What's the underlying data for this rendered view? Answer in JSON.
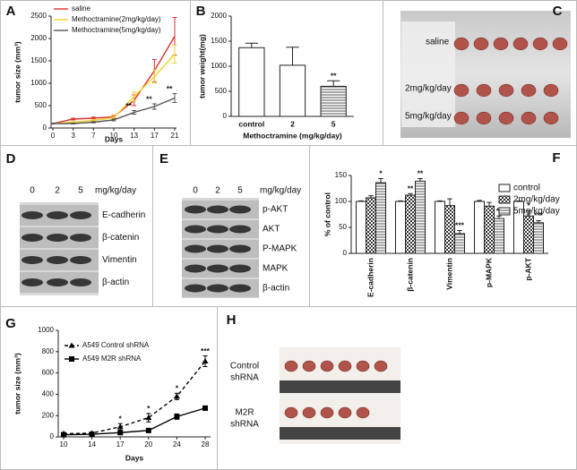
{
  "chart_data": [
    {
      "panel": "A",
      "type": "line",
      "ylabel": "tumor size (mm³)",
      "xlabel": "Days",
      "categories": [
        "0",
        "3",
        "7",
        "10",
        "13",
        "17",
        "21"
      ],
      "ylim": [
        0,
        2500
      ],
      "yticks": [
        0,
        500,
        1000,
        1500,
        2000,
        2500
      ],
      "legend": "top-left",
      "series": [
        {
          "name": "saline",
          "color": "#e0302e",
          "values": [
            100,
            200,
            220,
            250,
            620,
            1280,
            2050
          ],
          "errors": [
            10,
            20,
            25,
            30,
            120,
            250,
            420
          ]
        },
        {
          "name": "Methoctramine(2mg/kg/day)",
          "color": "#f2d22a",
          "values": [
            100,
            130,
            170,
            230,
            700,
            1150,
            1650
          ],
          "errors": [
            10,
            15,
            20,
            30,
            100,
            150,
            200
          ]
        },
        {
          "name": "Methoctramine(5mg/kg/day)",
          "color": "#555555",
          "values": [
            100,
            100,
            130,
            180,
            350,
            480,
            670
          ],
          "errors": [
            10,
            10,
            15,
            20,
            40,
            60,
            100
          ],
          "significance": [
            null,
            null,
            null,
            null,
            "**",
            "**",
            "**"
          ]
        }
      ]
    },
    {
      "panel": "B",
      "type": "bar",
      "ylabel": "tumor weight(mg)",
      "xlabel": "Methoctramine (mg/kg/day)",
      "categories": [
        "control",
        "2",
        "5"
      ],
      "ylim": [
        0,
        2000
      ],
      "yticks": [
        0,
        500,
        1000,
        1500,
        2000
      ],
      "series": [
        {
          "color": "#222222",
          "patterns": [
            "none",
            "none",
            "hlines"
          ],
          "values": [
            1370,
            1020,
            600
          ],
          "errors": [
            90,
            360,
            110
          ],
          "significance": [
            null,
            null,
            "**"
          ]
        }
      ]
    },
    {
      "panel": "F",
      "type": "bar",
      "ylabel": "% of control",
      "categories": [
        "E-cadherin",
        "β-catenin",
        "Vimentin",
        "p-MAPK",
        "p-AKT"
      ],
      "ylim": [
        0,
        150
      ],
      "yticks": [
        0,
        50,
        100,
        150
      ],
      "legend": "top-right",
      "series": [
        {
          "name": "control",
          "color": "#222222",
          "pattern": "none",
          "values": [
            100,
            100,
            100,
            100,
            100
          ],
          "errors": [
            1,
            1,
            1,
            2,
            1
          ]
        },
        {
          "name": "2mg/kg/day",
          "color": "#222222",
          "pattern": "checker",
          "values": [
            107,
            112,
            92,
            91,
            72
          ],
          "errors": [
            4,
            3,
            13,
            7,
            10
          ],
          "significance": [
            null,
            "**",
            null,
            null,
            "*"
          ]
        },
        {
          "name": "5mg/kg/day",
          "color": "#222222",
          "pattern": "hlines",
          "values": [
            136,
            139,
            38,
            67,
            59
          ],
          "errors": [
            8,
            5,
            6,
            5,
            4
          ],
          "significance": [
            "*",
            "**",
            "***",
            "**",
            "***"
          ]
        }
      ]
    },
    {
      "panel": "G",
      "type": "line",
      "ylabel": "tumor size (mm³)",
      "xlabel": "Days",
      "categories": [
        "10",
        "14",
        "17",
        "20",
        "24",
        "28"
      ],
      "ylim": [
        0,
        1000
      ],
      "yticks": [
        0,
        200,
        400,
        600,
        800,
        1000
      ],
      "legend": "top-left",
      "series": [
        {
          "name": "A549 Control shRNA",
          "color": "#000000",
          "dash": "dashed",
          "marker": "triangle",
          "values": [
            30,
            35,
            95,
            180,
            380,
            710
          ],
          "errors": [
            10,
            10,
            30,
            40,
            30,
            50
          ],
          "significance": [
            null,
            null,
            "*",
            "*",
            "*",
            "***"
          ]
        },
        {
          "name": "A549 M2R shRNA",
          "color": "#000000",
          "dash": "solid",
          "marker": "square",
          "values": [
            20,
            25,
            40,
            60,
            190,
            270
          ],
          "errors": [
            5,
            5,
            10,
            15,
            25,
            20
          ]
        }
      ]
    }
  ],
  "panels": [
    {
      "label": "C",
      "rows": [
        "saline",
        "2mg/kg/day",
        "5mg/kg/day"
      ]
    },
    {
      "label": "D",
      "lanes": [
        "0",
        "2",
        "5"
      ],
      "unit": "mg/kg/day",
      "rows": [
        "E-cadherin",
        "β-catenin",
        "Vimentin",
        "β-actin"
      ]
    },
    {
      "label": "E",
      "lanes": [
        "0",
        "2",
        "5"
      ],
      "unit": "mg/kg/day",
      "rows": [
        "p-AKT",
        "AKT",
        "P-MAPK",
        "MAPK",
        "β-actin"
      ]
    },
    {
      "label": "H",
      "rows": [
        [
          "Control",
          "shRNA"
        ],
        [
          "M2R",
          "shRNA"
        ]
      ]
    }
  ]
}
